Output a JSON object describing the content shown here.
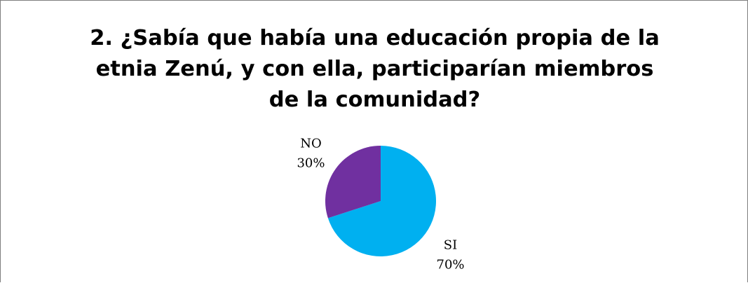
{
  "chart_data": {
    "type": "pie",
    "title": "2. ¿Sabía que había una educación propia de la etnia Zenú, y con ella, participarían miembros de la comunidad?",
    "slices": [
      {
        "category": "SI",
        "value": 70,
        "percent_label": "70%",
        "color": "#00B0F0"
      },
      {
        "category": "NO",
        "value": 30,
        "percent_label": "30%",
        "color": "#7030A0"
      }
    ],
    "legend": "none",
    "data_labels": "category and percentage, outside end"
  }
}
